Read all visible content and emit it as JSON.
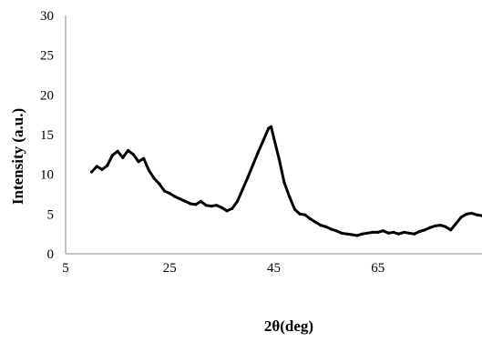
{
  "chart_data": {
    "type": "line",
    "title": "",
    "xlabel": "2θ(deg)",
    "ylabel": "Intensity (a.u.)",
    "xlim": [
      5,
      85
    ],
    "ylim": [
      0,
      30
    ],
    "x_ticks": [
      5,
      25,
      45,
      65
    ],
    "y_ticks": [
      0,
      5,
      10,
      15,
      20,
      25,
      30
    ],
    "x_tick_labels": [
      "5",
      "25",
      "45",
      "65"
    ],
    "y_tick_labels": [
      "0",
      "5",
      "10",
      "15",
      "20",
      "25",
      "30"
    ],
    "grid": false,
    "legend": "none",
    "line_color": "#000000",
    "series": [
      {
        "x": [
          10,
          11,
          12,
          13,
          14,
          15,
          16,
          17,
          18,
          19,
          20,
          21,
          22,
          23,
          24,
          25,
          26,
          27,
          28,
          29,
          30,
          31,
          32,
          33,
          34,
          35,
          36,
          37,
          38,
          39,
          40,
          41,
          42,
          43,
          44,
          44.5,
          45,
          46,
          47,
          48,
          49,
          50,
          51,
          52,
          53,
          54,
          55,
          56,
          57,
          58,
          59,
          60,
          61,
          62,
          63,
          64,
          65,
          66,
          67,
          68,
          69,
          70,
          71,
          72,
          73,
          74,
          75,
          76,
          77,
          78,
          79,
          80,
          81,
          82,
          83,
          84,
          85
        ],
        "values": [
          10.3,
          11.0,
          10.6,
          11.1,
          12.4,
          12.9,
          12.1,
          13.0,
          12.5,
          11.6,
          12.0,
          10.5,
          9.5,
          8.8,
          7.9,
          7.6,
          7.2,
          6.9,
          6.6,
          6.3,
          6.2,
          6.6,
          6.1,
          6.0,
          6.1,
          5.8,
          5.4,
          5.7,
          6.6,
          8.1,
          9.6,
          11.2,
          12.8,
          14.3,
          15.8,
          16.0,
          14.6,
          12.0,
          9.0,
          7.2,
          5.6,
          5.0,
          4.9,
          4.4,
          4.0,
          3.6,
          3.4,
          3.1,
          2.9,
          2.6,
          2.5,
          2.4,
          2.3,
          2.5,
          2.6,
          2.7,
          2.7,
          2.9,
          2.6,
          2.7,
          2.5,
          2.7,
          2.6,
          2.5,
          2.8,
          3.0,
          3.3,
          3.5,
          3.6,
          3.4,
          3.0,
          3.8,
          4.6,
          5.0,
          5.1,
          4.9,
          4.8
        ]
      }
    ]
  }
}
